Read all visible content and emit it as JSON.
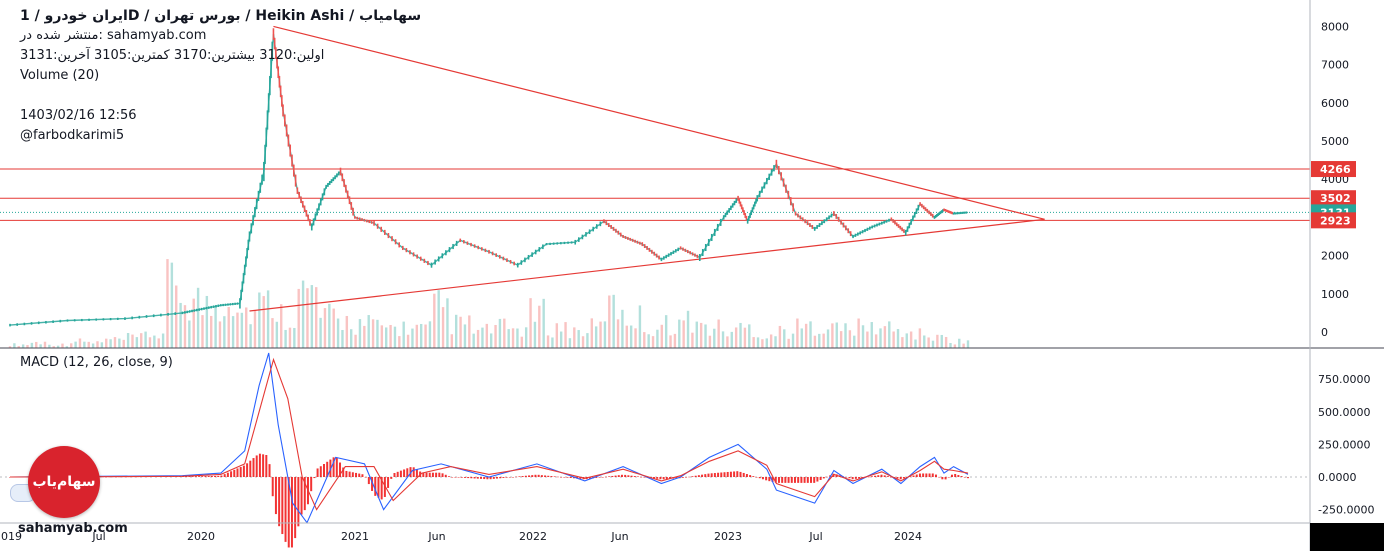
{
  "header": {
    "title": "ایران خودرو / 1D / بورس تهران / Heikin Ashi / سهامیاب",
    "published": "منتشر شده در: sahamyab.com",
    "ohlc": "اولین:3120 بیشترین:3170 کمترین:3105 آخرین:3131",
    "volume_label": "Volume (20)",
    "timestamp": "1403/02/16 12:56",
    "author": "@farbodkarimi5"
  },
  "macd_label": "MACD (12, 26, close, 9)",
  "watermark": {
    "logo_text": "سهام‌یاب",
    "site": "sahamyab.com"
  },
  "colors": {
    "up": "#26a69a",
    "down": "#ef5350",
    "trendline": "#e53935",
    "macd_line": "#2962ff",
    "signal_line": "#e53935",
    "last_price_badge": "#26a69a",
    "level_badge": "#e53935"
  },
  "chart_data": [
    {
      "type": "line",
      "title": "",
      "x_tick_labels": [
        "2019",
        "Jul",
        "2020",
        "Jun",
        "2021",
        "Jun",
        "2022",
        "Jun",
        "2023",
        "Jul",
        "2024"
      ],
      "y_tick_labels": [
        "0",
        "1000",
        "2000",
        "3000",
        "4000",
        "5000",
        "6000",
        "7000",
        "8000"
      ],
      "ylim": [
        -300,
        8600
      ],
      "grid": false,
      "series": [
        {
          "name": "",
          "t": [
            0,
            0.06,
            0.12,
            0.18,
            0.2,
            0.22,
            0.24,
            0.25,
            0.265,
            0.275,
            0.285,
            0.3,
            0.315,
            0.33,
            0.345,
            0.36,
            0.38,
            0.41,
            0.44,
            0.47,
            0.5,
            0.53,
            0.56,
            0.59,
            0.62,
            0.64,
            0.66,
            0.68,
            0.7,
            0.72,
            0.745,
            0.76,
            0.77,
            0.78,
            0.8,
            0.82,
            0.84,
            0.86,
            0.88,
            0.9,
            0.92,
            0.935,
            0.95,
            0.965,
            0.975,
            0.985,
            1.0
          ],
          "values": [
            180,
            300,
            350,
            500,
            600,
            700,
            750,
            2500,
            4200,
            7800,
            5800,
            3700,
            2750,
            3800,
            4200,
            3000,
            2850,
            2200,
            1750,
            2400,
            2100,
            1750,
            2300,
            2350,
            2900,
            2500,
            2300,
            1900,
            2200,
            1950,
            3000,
            3500,
            2900,
            3500,
            4400,
            3100,
            2700,
            3100,
            2500,
            2750,
            2950,
            2600,
            3350,
            3000,
            3200,
            3100,
            3131
          ]
        }
      ],
      "price_labels": [
        {
          "value": 4266,
          "text": "4266"
        },
        {
          "value": 3502,
          "text": "3502"
        },
        {
          "value": 3131,
          "text": "3131"
        },
        {
          "value": 2923,
          "text": "2923"
        }
      ],
      "volume": {
        "name": "Volume (20)",
        "values": [
          0.05,
          0.08,
          0.05,
          0.1,
          0.08,
          0.12,
          0.15,
          0.2,
          0.9,
          0.7,
          0.6,
          0.75,
          0.55,
          0.65,
          0.5,
          0.8,
          0.45,
          0.4,
          0.35,
          0.3,
          0.3,
          0.28,
          0.6,
          0.35,
          0.25,
          0.3,
          0.28,
          0.5,
          0.3,
          0.25,
          0.3,
          0.6,
          0.45,
          0.3,
          0.35,
          0.4,
          0.3,
          0.25,
          0.3,
          0.2,
          0.25,
          0.3,
          0.35,
          0.28,
          0.3,
          0.3,
          0.25,
          0.2,
          0.15,
          0.1
        ]
      },
      "trendlines": [
        {
          "from": {
            "t": 0.275,
            "v": 8000
          },
          "to": {
            "t": 1.08,
            "v": 2950
          }
        },
        {
          "from": {
            "t": 0.25,
            "v": 550
          },
          "to": {
            "t": 1.08,
            "v": 2950
          }
        }
      ],
      "horizontal_levels": [
        4266,
        3502,
        2923
      ]
    },
    {
      "type": "line",
      "title": "MACD (12, 26, close, 9)",
      "y_tick_labels": [
        "750.0000",
        "500.0000",
        "250.0000",
        "0.0000",
        "-250.0000"
      ],
      "ylim": [
        -330,
        970
      ],
      "series": [
        {
          "name": "MACD",
          "t": [
            0,
            0.18,
            0.22,
            0.245,
            0.26,
            0.27,
            0.28,
            0.295,
            0.31,
            0.34,
            0.37,
            0.39,
            0.42,
            0.45,
            0.5,
            0.55,
            0.6,
            0.64,
            0.68,
            0.7,
            0.73,
            0.76,
            0.79,
            0.8,
            0.82,
            0.84,
            0.86,
            0.88,
            0.91,
            0.93,
            0.95,
            0.965,
            0.975,
            0.985,
            1.0
          ],
          "values": [
            0,
            10,
            30,
            200,
            700,
            950,
            400,
            -200,
            -350,
            150,
            100,
            -250,
            50,
            100,
            0,
            100,
            -30,
            80,
            -50,
            0,
            150,
            250,
            60,
            -100,
            -150,
            -200,
            50,
            -50,
            60,
            -50,
            80,
            150,
            30,
            80,
            20
          ]
        },
        {
          "name": "Signal",
          "t": [
            0,
            0.18,
            0.22,
            0.245,
            0.26,
            0.275,
            0.29,
            0.305,
            0.32,
            0.35,
            0.38,
            0.4,
            0.43,
            0.46,
            0.5,
            0.55,
            0.6,
            0.64,
            0.68,
            0.7,
            0.73,
            0.76,
            0.79,
            0.8,
            0.82,
            0.84,
            0.86,
            0.88,
            0.91,
            0.93,
            0.95,
            0.965,
            0.975,
            0.985,
            1.0
          ],
          "values": [
            0,
            5,
            20,
            100,
            500,
            900,
            600,
            0,
            -250,
            80,
            80,
            -180,
            30,
            80,
            20,
            80,
            -10,
            60,
            -30,
            10,
            120,
            200,
            90,
            -50,
            -100,
            -150,
            20,
            -30,
            40,
            -30,
            50,
            120,
            60,
            50,
            30
          ]
        }
      ]
    }
  ]
}
